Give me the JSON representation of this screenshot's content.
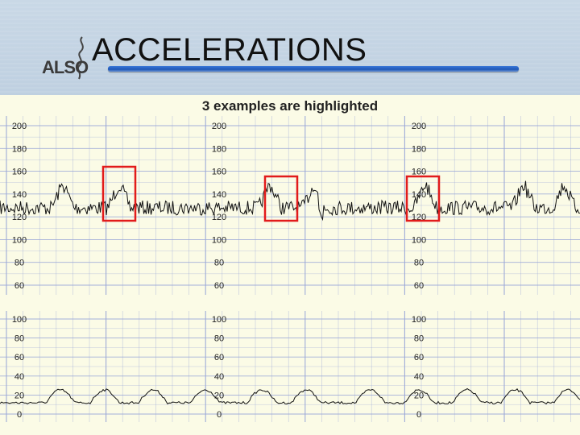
{
  "slide": {
    "title": "ACCELERATIONS",
    "subtitle": "3 examples are highlighted",
    "logo_text": "ALSO"
  },
  "fhr_scale": {
    "labels": [
      "200",
      "180",
      "160",
      "140",
      "120",
      "100",
      "80",
      "60"
    ]
  },
  "toco_scale": {
    "labels": [
      "100",
      "80",
      "60",
      "40",
      "20",
      "0"
    ]
  },
  "colors": {
    "grid": "#9aa7d8",
    "trace": "#111111",
    "highlight": "#e21b1b",
    "title_bar": "#2a66c6",
    "panel": "#fbfbe6"
  }
}
